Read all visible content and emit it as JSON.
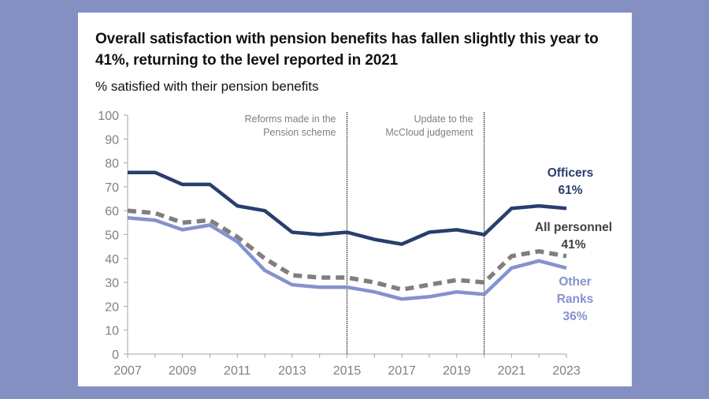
{
  "title": "Overall satisfaction with pension benefits has fallen slightly this year to 41%, returning to the level reported in 2021",
  "subtitle": "% satisfied with their pension benefits",
  "chart_data": {
    "type": "line",
    "title": "Overall satisfaction with pension benefits has fallen slightly this year to 41%, returning to the level reported in 2021",
    "subtitle": "% satisfied with their pension benefits",
    "xlabel": "",
    "ylabel": "% satisfied",
    "x": [
      2007,
      2008,
      2009,
      2010,
      2011,
      2012,
      2013,
      2014,
      2015,
      2016,
      2017,
      2018,
      2019,
      2020,
      2021,
      2022,
      2023
    ],
    "xticks": [
      "2007",
      "2009",
      "2011",
      "2013",
      "2015",
      "2017",
      "2019",
      "2021",
      "2023"
    ],
    "yticks": [
      "0",
      "10",
      "20",
      "30",
      "40",
      "50",
      "60",
      "70",
      "80",
      "90",
      "100"
    ],
    "ylim": [
      0,
      100
    ],
    "xlim": [
      2007,
      2023
    ],
    "grid": false,
    "series": [
      {
        "name": "Officers",
        "end_label": "61%",
        "color": "#283e6e",
        "style": "solid",
        "values": [
          76,
          76,
          71,
          71,
          62,
          60,
          51,
          50,
          51,
          48,
          46,
          51,
          52,
          50,
          61,
          62,
          61
        ]
      },
      {
        "name": "All personnel",
        "end_label": "41%",
        "color": "#7f7f7f",
        "style": "dashed",
        "values": [
          60,
          59,
          55,
          56,
          49,
          40,
          33,
          32,
          32,
          30,
          27,
          29,
          31,
          30,
          41,
          43,
          41
        ]
      },
      {
        "name": "Other Ranks",
        "end_label": "36%",
        "color": "#8592cc",
        "style": "solid",
        "values": [
          57,
          56,
          52,
          54,
          47,
          35,
          29,
          28,
          28,
          26,
          23,
          24,
          26,
          25,
          36,
          39,
          36
        ]
      }
    ],
    "annotations": [
      {
        "x": 2015,
        "text_lines": [
          "Reforms made in the",
          "Pension scheme"
        ],
        "style": "dotted-vertical-line"
      },
      {
        "x": 2020,
        "text_lines": [
          "Update to the",
          "McCloud judgement"
        ],
        "style": "dotted-vertical-line"
      }
    ],
    "legend": "inline-end-labels"
  }
}
